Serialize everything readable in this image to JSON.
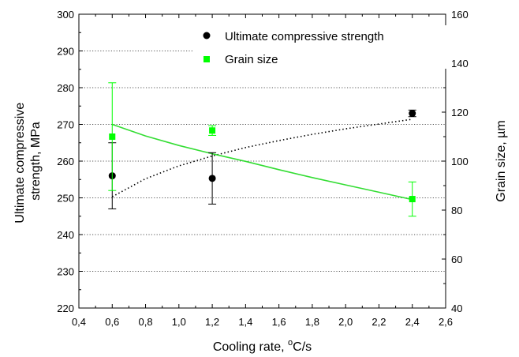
{
  "chart_data": {
    "type": "scatter",
    "xlabel_parts": [
      "Cooling rate, ",
      "o",
      "C/s"
    ],
    "ylabel_left_lines": [
      "Ultimate compressive",
      "strength, MPa"
    ],
    "ylabel_right": "Grain size, µm",
    "x_ticks": [
      "0,4",
      "0,6",
      "0,8",
      "1,0",
      "1,2",
      "1,4",
      "1,6",
      "1,8",
      "2,0",
      "2,2",
      "2,4",
      "2,6"
    ],
    "y_left_ticks": [
      "220",
      "230",
      "240",
      "250",
      "260",
      "270",
      "280",
      "290",
      "300"
    ],
    "y_right_ticks": [
      "40",
      "60",
      "80",
      "100",
      "120",
      "140",
      "160"
    ],
    "xlim": [
      0.4,
      2.6
    ],
    "ylim_left": [
      220,
      300
    ],
    "ylim_right": [
      40,
      160
    ],
    "grid": "horizontal dotted",
    "legend_position": "top-right",
    "series": [
      {
        "name": "Ultimate compressive strength",
        "axis": "left",
        "marker": "circle",
        "color": "#000000",
        "x": [
          0.6,
          1.2,
          2.4
        ],
        "y": [
          256.0,
          255.3,
          273.0
        ],
        "err_low": [
          9.0,
          7.0,
          0.9
        ],
        "err_high": [
          9.0,
          7.0,
          0.9
        ],
        "fit": {
          "style": "dotted",
          "color": "#000000",
          "x": [
            0.6,
            0.8,
            1.0,
            1.2,
            1.4,
            1.6,
            1.8,
            2.0,
            2.2,
            2.4
          ],
          "y": [
            250.3,
            255.2,
            258.7,
            261.4,
            263.7,
            265.6,
            267.3,
            268.8,
            270.1,
            271.4
          ]
        }
      },
      {
        "name": "Grain size",
        "axis": "right",
        "marker": "square",
        "color": "#00ff00",
        "x": [
          0.6,
          1.2,
          2.4
        ],
        "y": [
          110.0,
          112.5,
          84.5
        ],
        "err_low": [
          22.0,
          2.0,
          7.0
        ],
        "err_high": [
          22.0,
          2.0,
          7.0
        ],
        "fit": {
          "style": "solid",
          "color": "#33dd33",
          "x": [
            0.6,
            0.8,
            1.0,
            1.2,
            1.4,
            1.6,
            1.8,
            2.0,
            2.2,
            2.4
          ],
          "y": [
            115.0,
            110.3,
            106.4,
            103.0,
            99.9,
            96.5,
            93.3,
            90.3,
            87.3,
            84.3
          ]
        }
      }
    ]
  }
}
